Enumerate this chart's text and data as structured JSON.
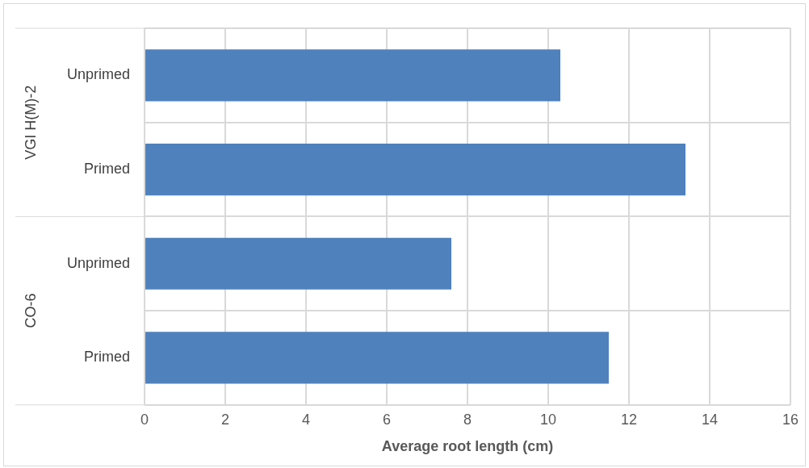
{
  "chart_data": {
    "type": "bar",
    "orientation": "horizontal",
    "xlabel": "Average root length (cm)",
    "categories": [
      "Unprimed",
      "Primed",
      "Unprimed",
      "Primed"
    ],
    "values": [
      10.3,
      13.4,
      7.6,
      11.5
    ],
    "color": "#4f81bd",
    "xlim": [
      0,
      16
    ],
    "xticks": [
      0,
      2,
      4,
      6,
      8,
      10,
      12,
      14,
      16
    ],
    "grid": true,
    "annotations": [
      "VGI H(M)-2",
      "CO-6"
    ]
  }
}
